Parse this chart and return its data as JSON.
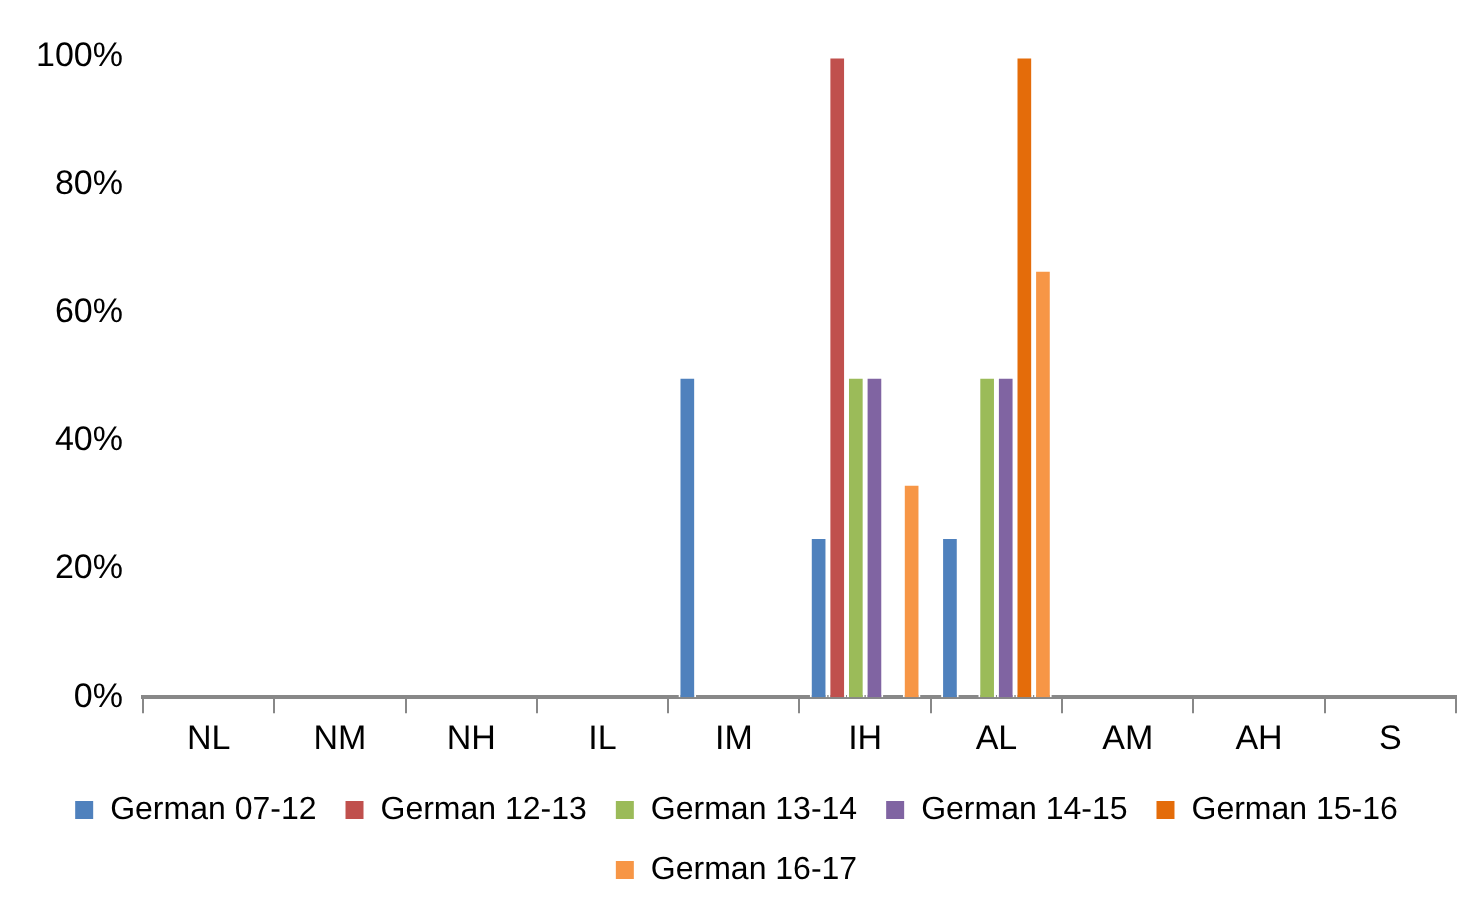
{
  "chart_data": {
    "type": "bar",
    "categories": [
      "NL",
      "NM",
      "NH",
      "IL",
      "IM",
      "IH",
      "AL",
      "AM",
      "AH",
      "S"
    ],
    "series": [
      {
        "name": "German 07-12",
        "color": "#4f81bd",
        "values": [
          0,
          0,
          0,
          0,
          50,
          25,
          25,
          0,
          0,
          0
        ]
      },
      {
        "name": "German 12-13",
        "color": "#c0504d",
        "values": [
          0,
          0,
          0,
          0,
          0,
          100,
          0,
          0,
          0,
          0
        ]
      },
      {
        "name": "German 13-14",
        "color": "#9bbb59",
        "values": [
          0,
          0,
          0,
          0,
          0,
          50,
          50,
          0,
          0,
          0
        ]
      },
      {
        "name": "German 14-15",
        "color": "#8064a2",
        "values": [
          0,
          0,
          0,
          0,
          0,
          50,
          50,
          0,
          0,
          0
        ]
      },
      {
        "name": "German 15-16",
        "color": "#e46c0a",
        "values": [
          0,
          0,
          0,
          0,
          0,
          0,
          100,
          0,
          0,
          0
        ]
      },
      {
        "name": "German 16-17",
        "color": "#f79646",
        "values": [
          0,
          0,
          0,
          0,
          0,
          33.3,
          66.7,
          0,
          0,
          0
        ]
      }
    ],
    "ylim": [
      0,
      100
    ],
    "yticks": [
      {
        "value": 0,
        "label": "0%"
      },
      {
        "value": 20,
        "label": "20%"
      },
      {
        "value": 40,
        "label": "40%"
      },
      {
        "value": 60,
        "label": "60%"
      },
      {
        "value": 80,
        "label": "80%"
      },
      {
        "value": 100,
        "label": "100%"
      }
    ],
    "grid": false,
    "legend": "bottom"
  }
}
